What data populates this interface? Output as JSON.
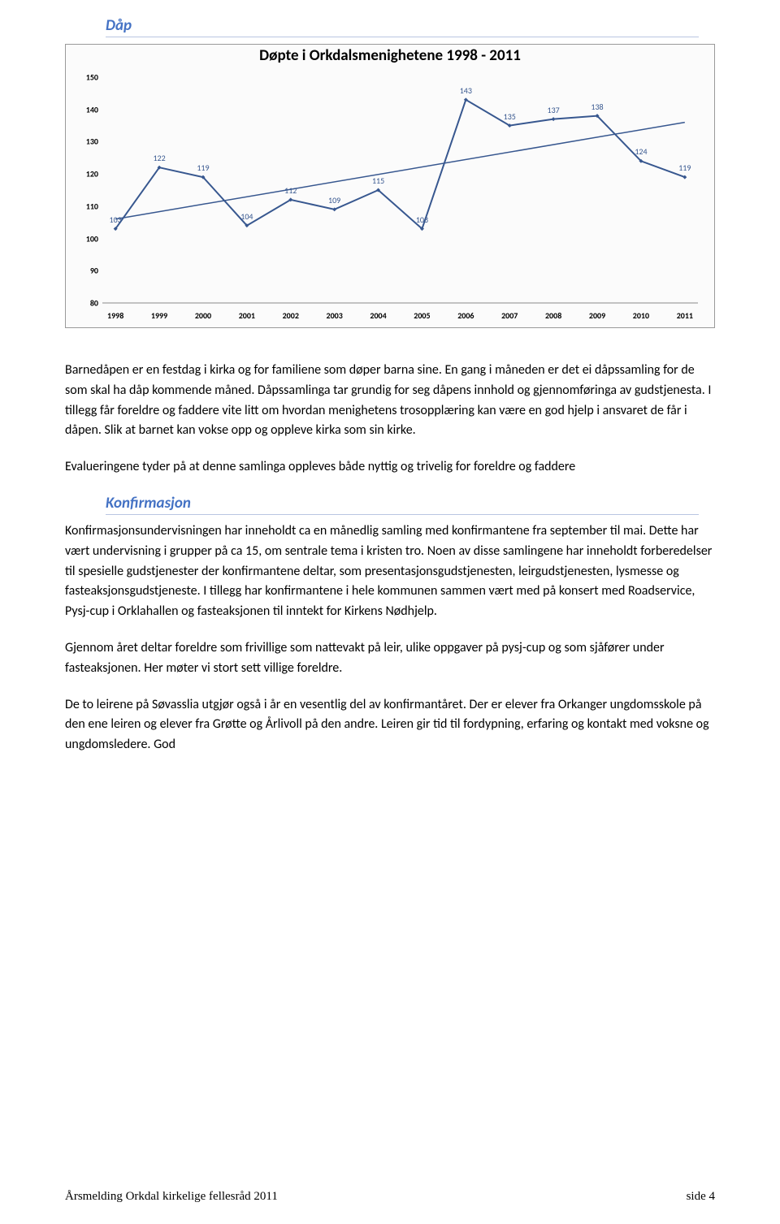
{
  "heading1": {
    "text": "Dåp",
    "color": "#4472c4",
    "border_color": "#b9c6e1",
    "fontsize": 19
  },
  "chart": {
    "type": "line",
    "title": "Døpte i Orkdalsmenighetene 1998 - 2011",
    "title_fontsize": 19,
    "title_color": "#000000",
    "background_color": "#fbfbfb",
    "border_color": "#999999",
    "years": [
      "1998",
      "1999",
      "2000",
      "2001",
      "2002",
      "2003",
      "2004",
      "2005",
      "2006",
      "2007",
      "2008",
      "2009",
      "2010",
      "2011"
    ],
    "values": [
      103,
      122,
      119,
      104,
      112,
      109,
      115,
      103,
      143,
      135,
      137,
      138,
      124,
      119
    ],
    "line_color": "#37578f",
    "marker_color": "#37578f",
    "marker_size": 5,
    "data_label_color": "#37578f",
    "data_label_fontsize": 10,
    "trendline_color": "#37578f",
    "trend_start": 106,
    "trend_end": 136,
    "ylim": [
      80,
      150
    ],
    "ytick_step": 10,
    "axis_label_fontsize": 10,
    "axis_label_color": "#000000"
  },
  "para1": "Barnedåpen er en festdag i kirka og for familiene som døper barna sine. En gang i måneden er det ei dåpssamling for de som skal ha dåp kommende måned. Dåpssamlinga tar grundig for seg dåpens innhold og gjennomføringa av gudstjenesta. I tillegg får foreldre og faddere vite litt om hvordan menighetens trosopplæring kan være en god hjelp i ansvaret de får i dåpen. Slik at barnet kan vokse opp og oppleve kirka som sin kirke.",
  "para2": "Evalueringene tyder på at denne samlinga oppleves både nyttig og trivelig for foreldre og faddere",
  "heading2": {
    "text": "Konfirmasjon",
    "color": "#4472c4",
    "border_color": "#b9c6e1",
    "fontsize": 19
  },
  "para3": "Konfirmasjonsundervisningen har inneholdt ca en månedlig samling med konfirmantene fra september til mai. Dette har vært undervisning i grupper på ca 15, om sentrale tema i kristen tro. Noen av disse samlingene har inneholdt forberedelser til spesielle gudstjenester der konfirmantene deltar, som presentasjonsgudstjenesten, leirgudstjenesten, lysmesse og fasteaksjonsgudstjeneste. I tillegg har konfirmantene i hele kommunen sammen vært med på konsert med Roadservice, Pysj-cup i Orklahallen og fasteaksjonen til inntekt for Kirkens Nødhjelp.",
  "para4": "Gjennom året deltar foreldre som frivillige som nattevakt på leir, ulike oppgaver på pysj-cup og som sjåfører under fasteaksjonen. Her møter vi stort sett villige foreldre.",
  "para5": "De to leirene på Søvasslia utgjør også i år en vesentlig del av konfirmantåret. Der er elever fra Orkanger ungdomsskole på den ene leiren og elever fra Grøtte og Årlivoll på den andre. Leiren gir tid til fordypning, erfaring og kontakt med voksne og ungdomsledere. God",
  "footer": {
    "left": "Årsmelding Orkdal kirkelige fellesråd 2011",
    "right": "side 4",
    "fontsize": 15,
    "color": "#000000"
  },
  "body_fontsize": 16,
  "body_color": "#000000"
}
